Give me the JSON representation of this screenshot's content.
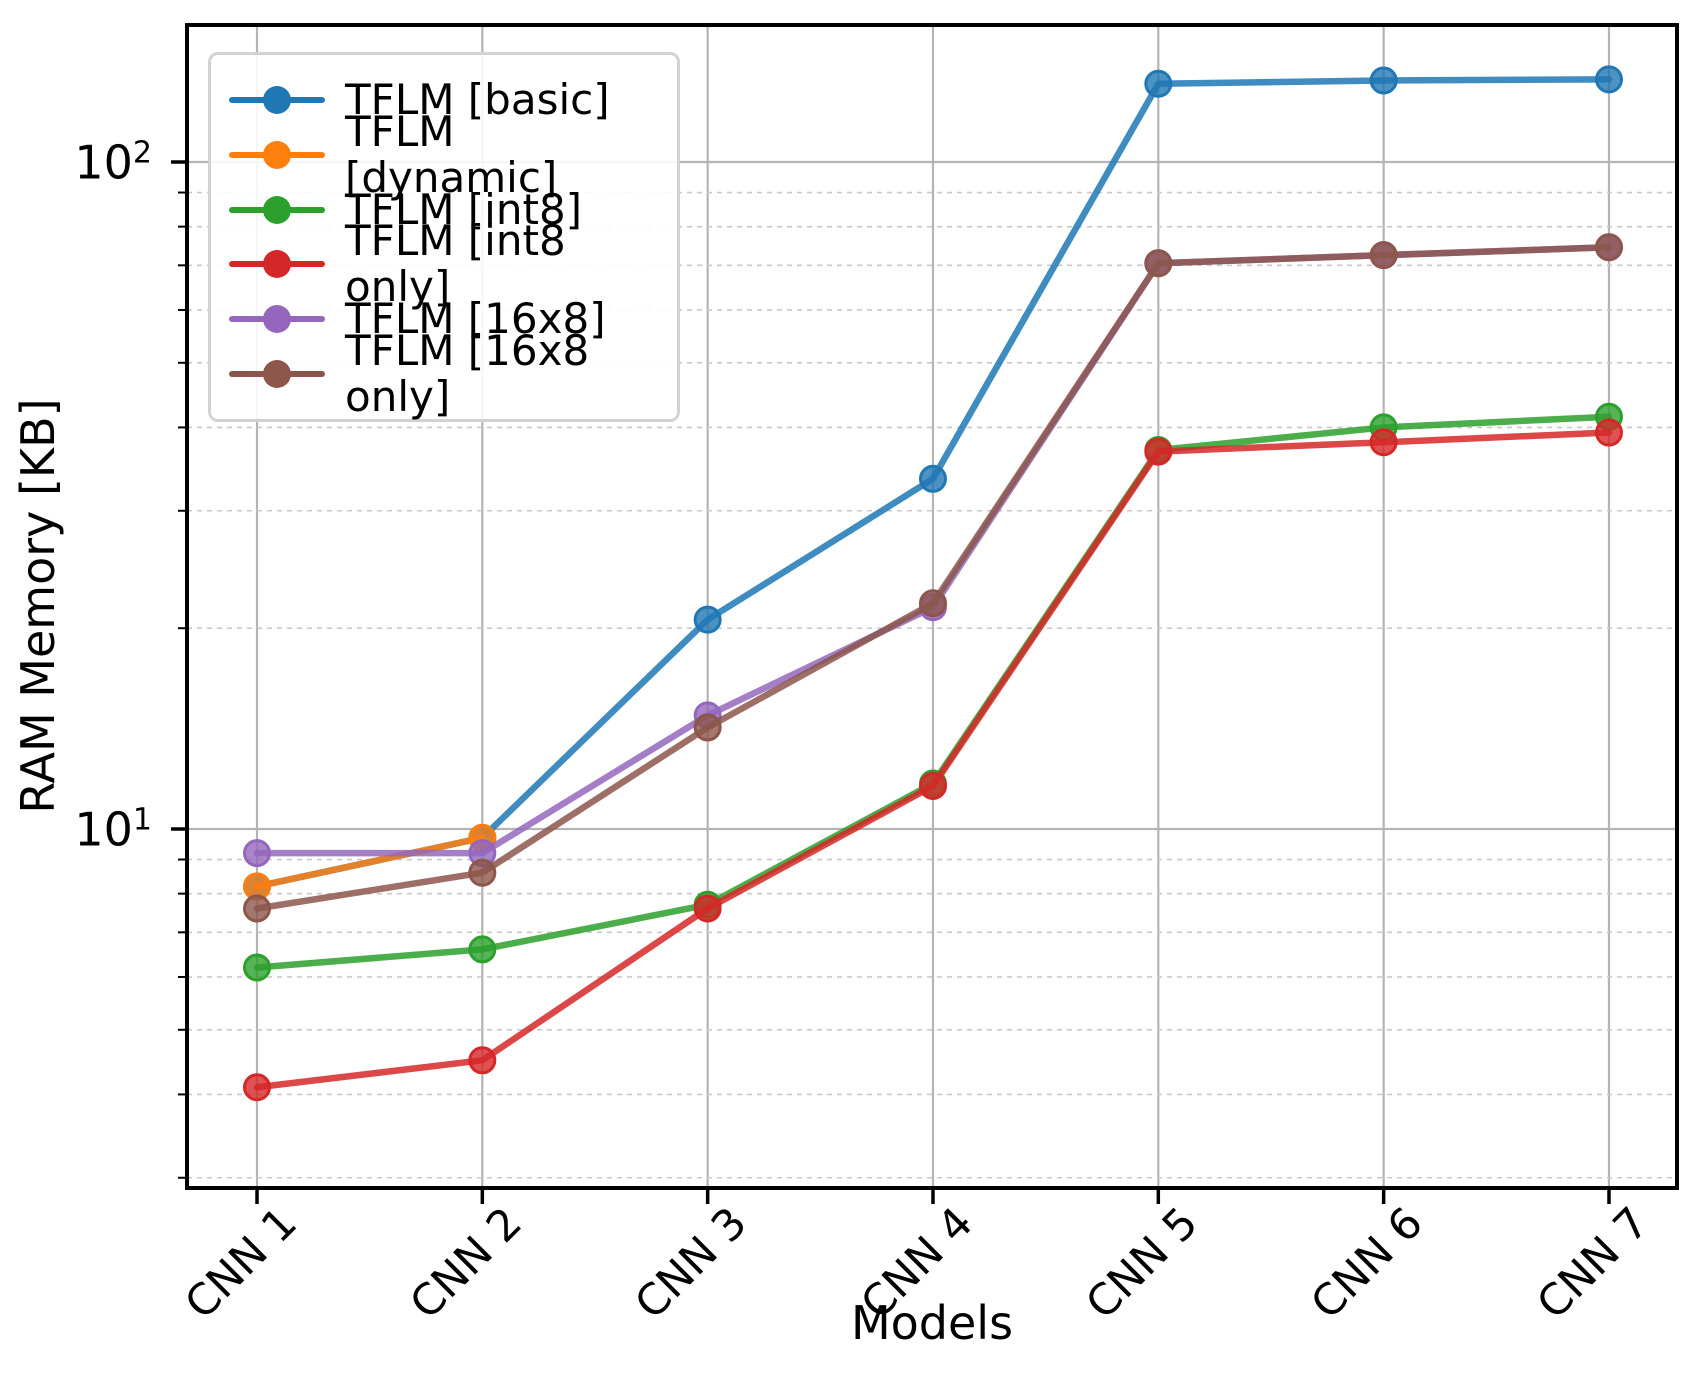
{
  "chart_data": {
    "type": "line",
    "title": "",
    "xlabel": "Models",
    "ylabel": "RAM Memory [KB]",
    "yscale": "log",
    "ylim": [
      2.9,
      160
    ],
    "grid": true,
    "legend_position": "upper left",
    "categories": [
      "CNN 1",
      "CNN 2",
      "CNN 3",
      "CNN 4",
      "CNN 5",
      "CNN 6",
      "CNN 7"
    ],
    "y_ticks": [
      {
        "label": "10",
        "exp": "2",
        "value": 100
      },
      {
        "label": "10",
        "exp": "1",
        "value": 10
      }
    ],
    "y_major_gridlines": [
      10,
      100
    ],
    "y_minor_gridlines": [
      3,
      4,
      5,
      6,
      7,
      8,
      9,
      20,
      30,
      40,
      50,
      60,
      70,
      80,
      90
    ],
    "series": [
      {
        "name": "TFLM [basic]",
        "color": "#1f77b4",
        "values": [
          8.2,
          9.7,
          20.6,
          33.5,
          131,
          132.5,
          133
        ]
      },
      {
        "name": "TFLM [dynamic]",
        "color": "#ff7f0e",
        "values": [
          8.2,
          9.7,
          null,
          null,
          null,
          null,
          null
        ]
      },
      {
        "name": "TFLM [int8]",
        "color": "#2ca02c",
        "values": [
          6.2,
          6.6,
          7.7,
          11.7,
          37,
          40,
          41.5
        ]
      },
      {
        "name": "TFLM [int8 only]",
        "color": "#d62728",
        "values": [
          4.1,
          4.5,
          7.6,
          11.6,
          36.8,
          38,
          39.3
        ]
      },
      {
        "name": "TFLM [16x8]",
        "color": "#9467bd",
        "values": [
          9.2,
          9.2,
          14.8,
          21.5,
          70.5,
          72.5,
          74.5
        ]
      },
      {
        "name": "TFLM [16x8 only]",
        "color": "#8c564b",
        "values": [
          7.6,
          8.6,
          14.2,
          21.8,
          70.5,
          72.5,
          74.5
        ]
      }
    ]
  }
}
